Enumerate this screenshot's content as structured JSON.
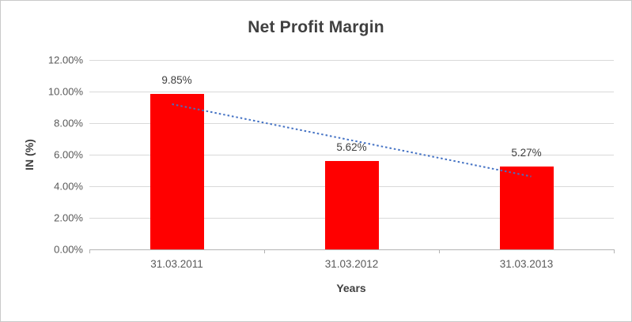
{
  "chart_data": {
    "type": "bar",
    "title": "Net Profit Margin",
    "categories": [
      "31.03.2011",
      "31.03.2012",
      "31.03.2013"
    ],
    "values": [
      9.85,
      5.62,
      5.27
    ],
    "data_labels": [
      "9.85%",
      "5.62%",
      "5.27%"
    ],
    "xlabel": "Years",
    "ylabel": "IN (%)",
    "ylim": [
      0,
      12
    ],
    "ytick_step": 2,
    "ytick_labels": [
      "0.00%",
      "2.00%",
      "4.00%",
      "6.00%",
      "8.00%",
      "10.00%",
      "12.00%"
    ],
    "grid": true,
    "legend": "none",
    "bar_color": "#ff0000",
    "title_color": "#404040",
    "axis_text_color": "#595959",
    "gridline_color": "#d9d9d9",
    "trendline": {
      "type": "linear",
      "style": "dotted",
      "color": "#4472c4",
      "start_value": 9.2,
      "end_value": 4.62
    }
  }
}
